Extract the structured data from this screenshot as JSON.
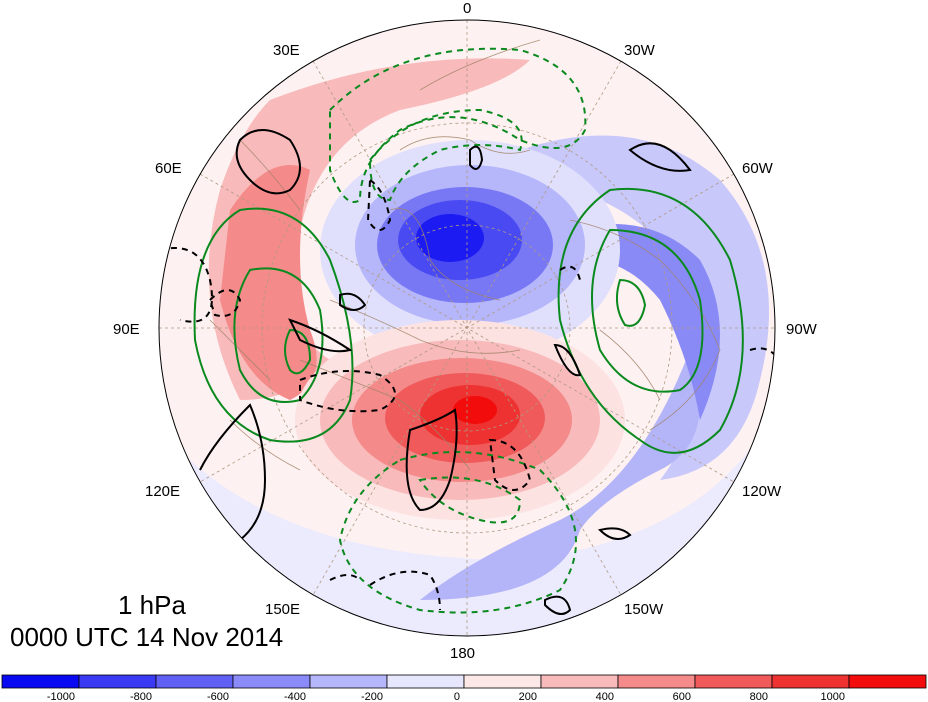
{
  "map": {
    "level": "1 hPa",
    "valid_time": "0000 UTC 14 Nov 2014",
    "meridian_labels": {
      "m0": "0",
      "m30w": "30W",
      "m60w": "60W",
      "m90w": "90W",
      "m120w": "120W",
      "m150w": "150W",
      "m180": "180",
      "m150e": "150E",
      "m120e": "120E",
      "m90e": "90E",
      "m60e": "60E",
      "m30e": "30E"
    }
  },
  "colorbar": {
    "ticks": [
      "-1000",
      "-800",
      "-600",
      "-400",
      "-200",
      "0",
      "200",
      "400",
      "600",
      "800",
      "1000"
    ],
    "colors": [
      "#0a0af2",
      "#3a3af5",
      "#6060f5",
      "#8a8af8",
      "#b6b6fb",
      "#e6e6fd",
      "#fde8e8",
      "#f8baba",
      "#f48a8a",
      "#f05a5a",
      "#ee3232",
      "#f20c0c"
    ]
  },
  "colors": {
    "coast": "#a08268",
    "grid": "#b09a82",
    "pos_contour": "#000000",
    "neg_contour": "#000000",
    "green_contour": "#0a8a1e"
  }
}
